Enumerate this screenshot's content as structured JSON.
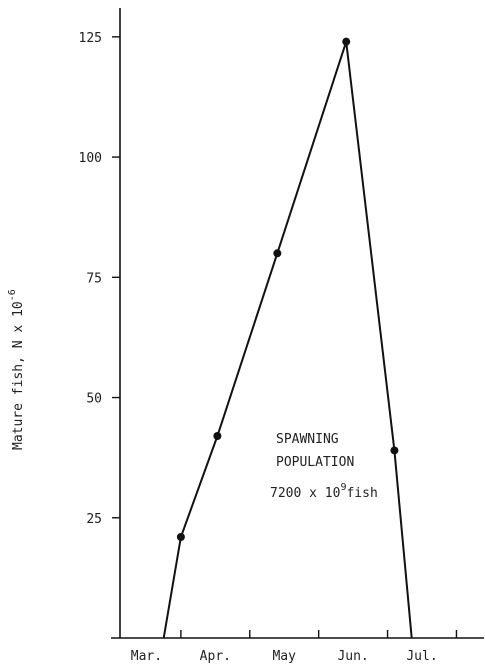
{
  "chart_data": {
    "type": "line",
    "title": "",
    "xlabel": "",
    "ylabel": "Mature fish, N x 10",
    "ylabel_exponent": "-6",
    "x_ticks": [
      "Mar.",
      "Apr.",
      "May",
      "Jun.",
      "Jul."
    ],
    "y_ticks": [
      25,
      50,
      75,
      100,
      125
    ],
    "xlim": [
      0,
      5.4
    ],
    "ylim": [
      0,
      131
    ],
    "grid": false,
    "series": [
      {
        "points": [
          {
            "x": 0.75,
            "y": 0
          },
          {
            "x": 1.0,
            "y": 21
          },
          {
            "x": 1.53,
            "y": 42
          },
          {
            "x": 2.4,
            "y": 80
          },
          {
            "x": 3.4,
            "y": 124
          },
          {
            "x": 4.1,
            "y": 39
          },
          {
            "x": 4.35,
            "y": 0
          }
        ],
        "markers": [
          false,
          true,
          true,
          true,
          true,
          true,
          false
        ]
      }
    ],
    "annotation": {
      "line1": "SPAWNING",
      "line2": "POPULATION",
      "line3_prefix": "7200 x 10",
      "line3_exponent": "9",
      "line3_suffix": "fish"
    }
  }
}
